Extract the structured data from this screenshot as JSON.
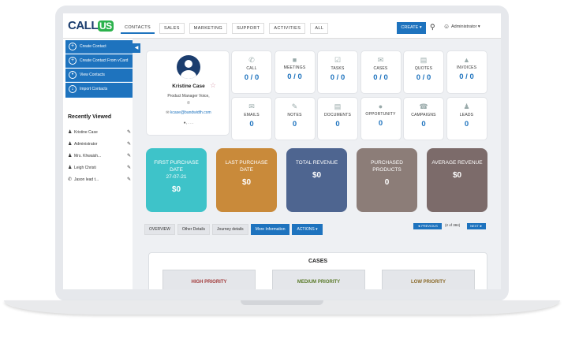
{
  "app": {
    "logo_main": "CALL",
    "logo_accent": "US"
  },
  "nav": [
    "CONTACTS",
    "SALES",
    "MARKETING",
    "SUPPORT",
    "ACTIVITIES",
    "ALL"
  ],
  "header": {
    "create_label": "CREATE ▾",
    "user": "Administrator ▾"
  },
  "sidebar": {
    "actions": [
      "Create Contact",
      "Create Contact From vCard",
      "View Contacts",
      "Import Contacts"
    ],
    "recent_title": "Recently Viewed",
    "recent": [
      "Kristine Case",
      "Administrator",
      "Mrs. Khwaish...",
      "Leigh Christi",
      "Jason lead t..."
    ]
  },
  "profile": {
    "name": "Kristine Case",
    "title": "Product Manager Voice,",
    "email": "kcase@bandwidth.com",
    "location": ", . . ."
  },
  "stats_row1": [
    {
      "label": "CALL",
      "value": "0 / 0"
    },
    {
      "label": "MEETINGS",
      "value": "0 / 0"
    },
    {
      "label": "TASKS",
      "value": "0 / 0"
    },
    {
      "label": "CASES",
      "value": "0 / 0"
    },
    {
      "label": "QUOTES",
      "value": "0 / 0"
    },
    {
      "label": "INVOICES",
      "value": "0 / 0"
    }
  ],
  "stats_row2": [
    {
      "label": "EMAILS",
      "value": "0"
    },
    {
      "label": "NOTES",
      "value": "0"
    },
    {
      "label": "DOCUMENTS",
      "value": "0"
    },
    {
      "label": "OPPORTUNITY",
      "value": "0"
    },
    {
      "label": "CAMPAIGNS",
      "value": "0"
    },
    {
      "label": "LEADS",
      "value": "0"
    }
  ],
  "summary": [
    {
      "title": "FIRST PURCHASE DATE",
      "sub": "27-07-21",
      "value": "$0",
      "color": "#3ec3c9"
    },
    {
      "title": "LAST PURCHASE DATE",
      "sub": "",
      "value": "$0",
      "color": "#c98a3a"
    },
    {
      "title": "TOTAL REVENUE",
      "sub": "",
      "value": "$0",
      "color": "#4e6590"
    },
    {
      "title": "PURCHASED PRODUCTS",
      "sub": "",
      "value": "0",
      "color": "#8c7d78"
    },
    {
      "title": "AVERAGE REVENUE",
      "sub": "",
      "value": "$0",
      "color": "#7c6b6a"
    }
  ],
  "tabs": [
    "OVERVIEW",
    "Other Details",
    "Journey details",
    "More Information",
    "ACTIONS ▾"
  ],
  "pager": {
    "prev": "◄ PREVIOUS",
    "count": "(2 of 384)",
    "next": "NEXT ►"
  },
  "cases": {
    "title": "CASES",
    "priorities": [
      {
        "label": "HIGH PRIORITY",
        "color": "#a23b3b"
      },
      {
        "label": "MEDIUM PRIORITY",
        "color": "#5a7a2a"
      },
      {
        "label": "LOW PRIORITY",
        "color": "#8a6a2a"
      }
    ]
  }
}
